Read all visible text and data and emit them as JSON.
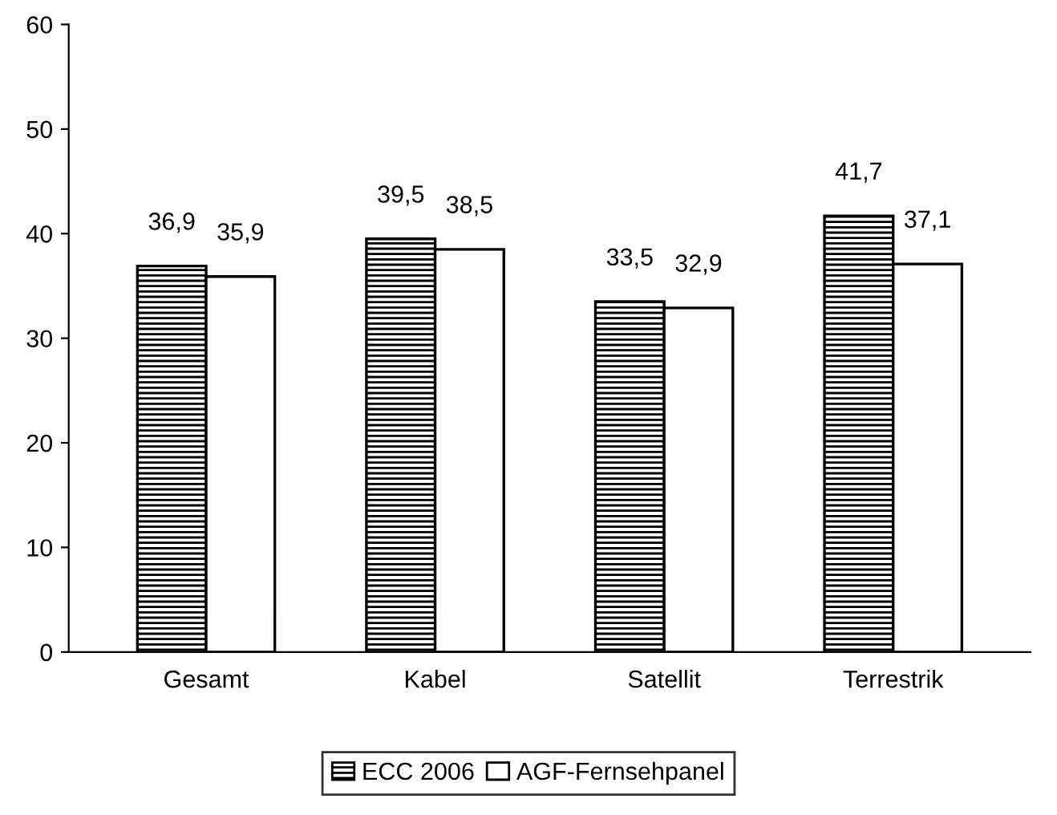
{
  "chart_data": {
    "type": "bar",
    "categories": [
      "Gesamt",
      "Kabel",
      "Satellit",
      "Terrestrik"
    ],
    "series": [
      {
        "name": "ECC 2006",
        "color": "#000000",
        "values": [
          36.9,
          39.5,
          33.5,
          41.7
        ],
        "value_labels": [
          "36,9",
          "39,5",
          "33,5",
          "41,7"
        ]
      },
      {
        "name": "AGF-Fernsehpanel",
        "color": "#ffffff",
        "values": [
          35.9,
          38.5,
          32.9,
          37.1
        ],
        "value_labels": [
          "35,9",
          "38,5",
          "32,9",
          "37,1"
        ]
      }
    ],
    "ylim": [
      0,
      60
    ],
    "yticks": [
      0,
      10,
      20,
      30,
      40,
      50,
      60
    ],
    "grid": false,
    "legend": "bottom"
  }
}
